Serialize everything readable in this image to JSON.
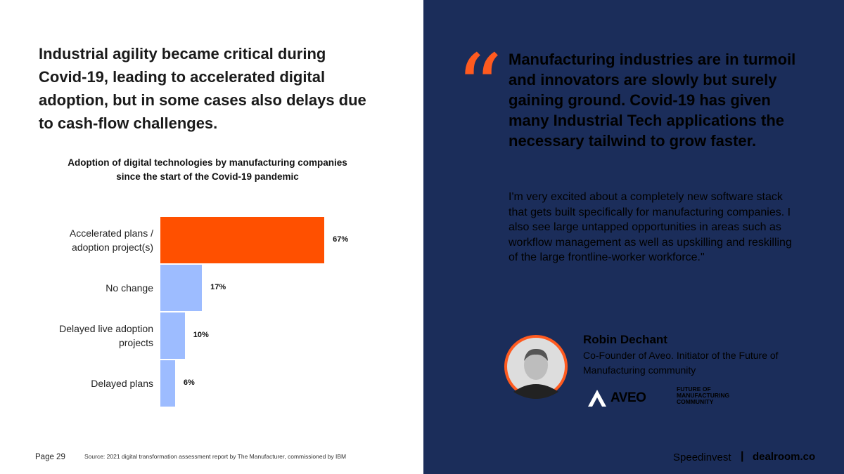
{
  "headline": "Industrial agility became critical during Covid-19, leading to accelerated digital adoption, but in some cases also delays due to cash-flow challenges.",
  "chart_data": {
    "type": "bar",
    "orientation": "horizontal",
    "title": "Adoption of digital technologies by manufacturing companies since the start of the Covid-19 pandemic",
    "categories": [
      "Accelerated plans / adoption project(s)",
      "No change",
      "Delayed live adoption projects",
      "Delayed plans"
    ],
    "values": [
      67,
      17,
      10,
      6
    ],
    "value_labels": [
      "67%",
      "17%",
      "10%",
      "6%"
    ],
    "colors": [
      "#ff5000",
      "#9dbcff",
      "#9dbcff",
      "#9dbcff"
    ]
  },
  "footer": {
    "page": "Page 29",
    "source": "Source: 2021 digital transformation assessment report by The Manufacturer, commissioned by IBM"
  },
  "quote": {
    "headline": "Manufacturing industries are in turmoil and innovators are slowly but surely gaining ground. Covid-19 has given many Industrial Tech applications the necessary tailwind to grow faster.",
    "body": "I'm very excited about a completely new software stack that gets built specifically for manufacturing companies. I also see large untapped opportunities in areas such as workflow management as well as upskilling and reskilling of the large frontline-worker workforce.\"",
    "name": "Robin Dechant",
    "role": "Co-Founder of Aveo. Initiator of the Future of Manufacturing community",
    "logo_aveo": "AVEO",
    "logo_fom": [
      "FUTURE OF",
      "MANUFACTURING",
      "COMMUNITY"
    ]
  },
  "brand": {
    "left": "Speedinvest",
    "right": "dealroom.co"
  }
}
